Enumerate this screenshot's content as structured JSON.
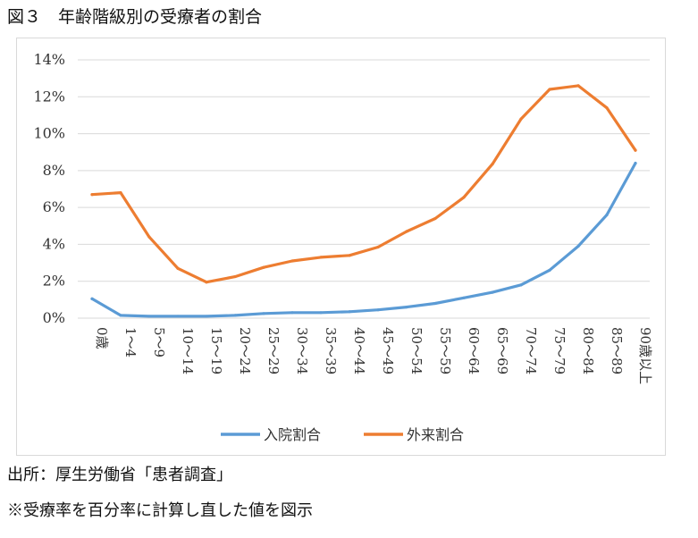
{
  "figure_title": "図３　年齢階級別の受療者の割合",
  "source_note": "出所：厚生労働省「患者調査」",
  "remark_note": "※受療率を百分率に計算し直した値を図示",
  "chart_data": {
    "type": "line",
    "title": "",
    "xlabel": "",
    "ylabel": "",
    "categories": [
      "0歳",
      "1～4",
      "5～9",
      "10～14",
      "15～19",
      "20～24",
      "25～29",
      "30～34",
      "35～39",
      "40～44",
      "45～49",
      "50～54",
      "55～59",
      "60～64",
      "65～69",
      "70～74",
      "75～79",
      "80～84",
      "85～89",
      "90歳以上"
    ],
    "series": [
      {
        "name": "入院割合",
        "color": "#5b9bd5",
        "values": [
          1.05,
          0.15,
          0.1,
          0.1,
          0.1,
          0.15,
          0.25,
          0.3,
          0.3,
          0.35,
          0.45,
          0.6,
          0.8,
          1.1,
          1.4,
          1.8,
          2.6,
          3.9,
          5.6,
          8.4
        ]
      },
      {
        "name": "外来割合",
        "color": "#ed7d31",
        "values": [
          6.7,
          6.8,
          4.4,
          2.7,
          1.95,
          2.25,
          2.75,
          3.1,
          3.3,
          3.4,
          3.85,
          4.7,
          5.4,
          6.55,
          8.35,
          10.8,
          12.4,
          12.6,
          11.4,
          9.1
        ]
      }
    ],
    "y_ticks": [
      "0%",
      "2%",
      "4%",
      "6%",
      "8%",
      "10%",
      "12%",
      "14%"
    ],
    "ylim": [
      0,
      14
    ],
    "grid": true,
    "legend_position": "bottom"
  }
}
